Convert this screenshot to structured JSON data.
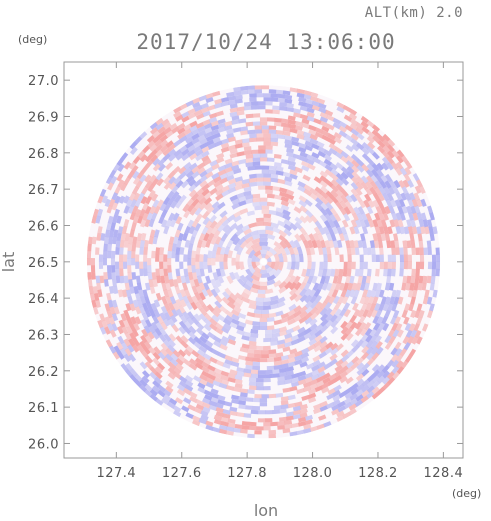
{
  "chart_data": {
    "type": "heatmap",
    "title": "2017/10/24 13:06:00",
    "subtitle": "ALT(km) 2.0",
    "xlabel": "lon",
    "ylabel": "lat",
    "x_unit": "(deg)",
    "y_unit": "(deg)",
    "xlim": [
      127.24,
      128.46
    ],
    "ylim": [
      25.96,
      27.05
    ],
    "x_ticks": [
      127.4,
      127.6,
      127.8,
      128.0,
      128.2,
      128.4
    ],
    "x_tick_labels": [
      "127.4",
      "127.6",
      "127.8",
      "128.0",
      "128.2",
      "128.4"
    ],
    "y_ticks": [
      26.0,
      26.1,
      26.2,
      26.3,
      26.4,
      26.5,
      26.6,
      26.7,
      26.8,
      26.9,
      27.0
    ],
    "y_tick_labels": [
      "26.0",
      "26.1",
      "26.2",
      "26.3",
      "26.4",
      "26.5",
      "26.6",
      "26.7",
      "26.8",
      "26.9",
      "27.0"
    ],
    "radar_center": [
      127.85,
      26.5
    ],
    "radar_radius_deg": 0.54,
    "colors": {
      "positive": "#f4a0a0",
      "negative": "#a8a8f0",
      "neutral": "#ffffff",
      "axis": "#999999",
      "text": "#555555"
    },
    "grid": false,
    "legend": "none"
  }
}
